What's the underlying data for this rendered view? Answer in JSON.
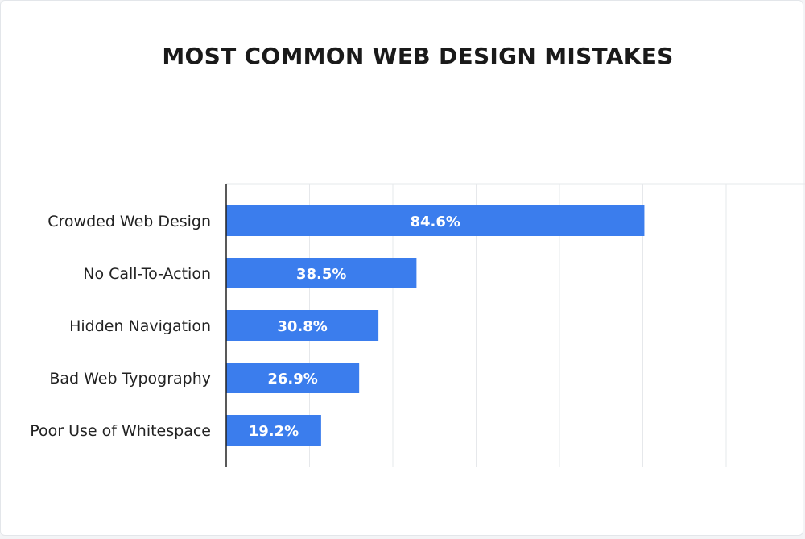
{
  "chart_data": {
    "type": "bar",
    "orientation": "horizontal",
    "title": "MOST COMMON WEB DESIGN MISTAKES",
    "categories": [
      "Crowded Web Design",
      "No Call-To-Action",
      "Hidden Navigation",
      "Bad Web Typography",
      "Poor Use of Whitespace"
    ],
    "values": [
      84.6,
      38.5,
      30.8,
      26.9,
      19.2
    ],
    "value_labels": [
      "84.6%",
      "38.5%",
      "30.8%",
      "26.9%",
      "19.2%"
    ],
    "xlim": [
      0,
      100
    ],
    "grid": true,
    "bar_color": "#3b7ded",
    "grid_color": "#e6e8eb",
    "axis_color": "#222222"
  }
}
